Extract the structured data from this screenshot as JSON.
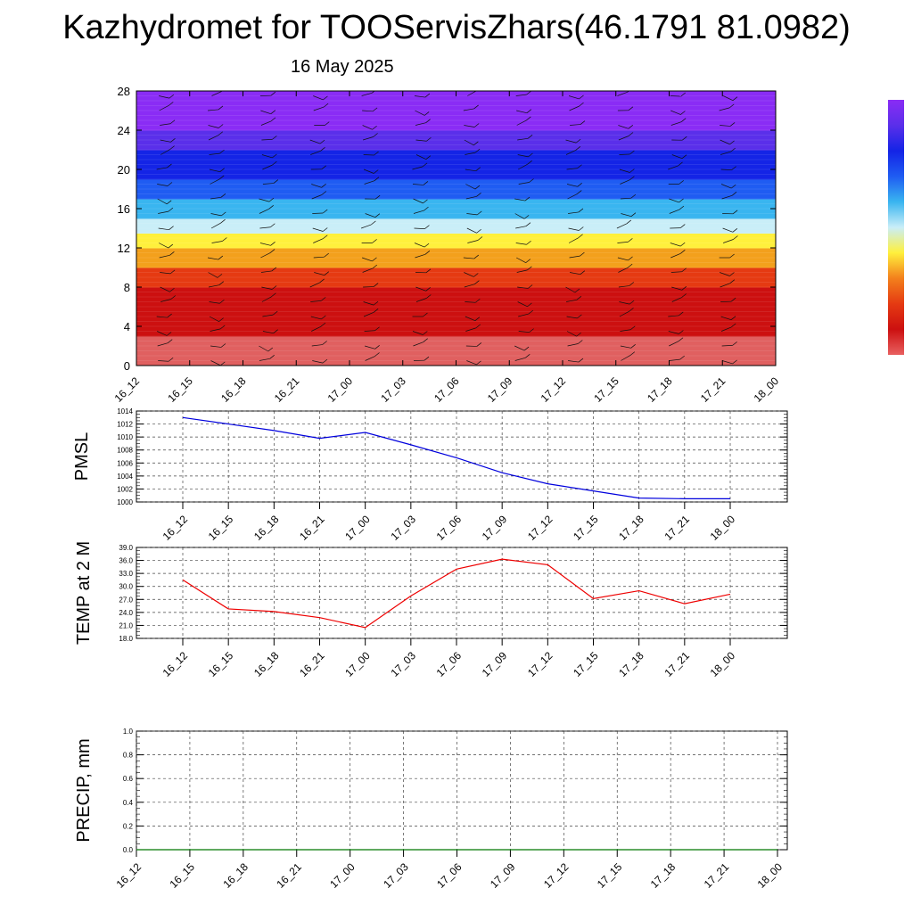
{
  "title": "Kazhydromet for TOOServisZhars(46.1791 81.0982)",
  "subtitle": "16 May 2025",
  "chart_data": [
    {
      "type": "heatmap",
      "title": "",
      "ylim": [
        0,
        28
      ],
      "y_ticks": [
        "0",
        "4",
        "8",
        "12",
        "16",
        "20",
        "24",
        "28"
      ],
      "x_ticks": [
        "16_12",
        "16_15",
        "16_18",
        "16_21",
        "17_00",
        "17_03",
        "17_06",
        "17_09",
        "17_12",
        "17_15",
        "17_18",
        "17_21",
        "18_00"
      ],
      "color_bands": [
        {
          "from": 0,
          "to": 3,
          "color": "#e06060"
        },
        {
          "from": 3,
          "to": 8,
          "color": "#cc1010"
        },
        {
          "from": 8,
          "to": 10,
          "color": "#e53a12"
        },
        {
          "from": 10,
          "to": 12,
          "color": "#f3a01c"
        },
        {
          "from": 12,
          "to": 13.5,
          "color": "#fff03c"
        },
        {
          "from": 13.5,
          "to": 15,
          "color": "#c9eef8"
        },
        {
          "from": 15,
          "to": 17,
          "color": "#39b5f0"
        },
        {
          "from": 17,
          "to": 19,
          "color": "#1f5cf2"
        },
        {
          "from": 19,
          "to": 22,
          "color": "#1424e6"
        },
        {
          "from": 22,
          "to": 24,
          "color": "#5a2fea"
        },
        {
          "from": 24,
          "to": 28,
          "color": "#8a2cf5"
        }
      ],
      "wind_barbs": true,
      "colorbar_colors": [
        "#e86060",
        "#cc1010",
        "#e53a12",
        "#f3801c",
        "#fff03c",
        "#c9eef8",
        "#39b5f0",
        "#1f5cf2",
        "#1424e6",
        "#5a2fea",
        "#8a2cf5"
      ]
    },
    {
      "type": "line",
      "ylabel": "PMSL",
      "ylim": [
        1000,
        1014
      ],
      "y_ticks": [
        "1000",
        "1002",
        "1004",
        "1006",
        "1008",
        "1010",
        "1012",
        "1014"
      ],
      "categories": [
        "16_12",
        "16_15",
        "16_18",
        "16_21",
        "17_00",
        "17_03",
        "17_06",
        "17_09",
        "17_12",
        "17_15",
        "17_18",
        "17_21",
        "18_00"
      ],
      "series": [
        {
          "values": [
            1013.0,
            1012.0,
            1011.0,
            1009.8,
            1010.7,
            1008.8,
            1006.8,
            1004.5,
            1002.8,
            1001.7,
            1000.6,
            1000.5,
            1000.5
          ],
          "color": "#0000dd"
        }
      ],
      "grid": true
    },
    {
      "type": "line",
      "ylabel": "TEMP at 2 M",
      "ylim": [
        18,
        39
      ],
      "y_ticks": [
        "18.0",
        "21.0",
        "24.0",
        "27.0",
        "30.0",
        "33.0",
        "36.0",
        "39.0"
      ],
      "categories": [
        "16_12",
        "16_15",
        "16_18",
        "16_21",
        "17_00",
        "17_03",
        "17_06",
        "17_09",
        "17_12",
        "17_15",
        "17_18",
        "17_21",
        "18_00"
      ],
      "series": [
        {
          "values": [
            31.5,
            24.8,
            24.2,
            22.8,
            20.5,
            27.8,
            34.0,
            36.3,
            35.0,
            27.2,
            29.0,
            26.0,
            28.2
          ],
          "color": "#ee0000"
        }
      ],
      "grid": true
    },
    {
      "type": "line",
      "ylabel": "PRECIP, mm",
      "ylim": [
        0,
        1
      ],
      "y_ticks": [
        "0.0",
        "0.2",
        "0.4",
        "0.6",
        "0.8",
        "1.0"
      ],
      "categories": [
        "16_12",
        "16_15",
        "16_18",
        "16_21",
        "17_00",
        "17_03",
        "17_06",
        "17_09",
        "17_12",
        "17_15",
        "17_18",
        "17_21",
        "18_00"
      ],
      "series": [
        {
          "values": [
            0,
            0,
            0,
            0,
            0,
            0,
            0,
            0,
            0,
            0,
            0,
            0,
            0
          ],
          "color": "#007700"
        }
      ],
      "grid": true
    }
  ]
}
